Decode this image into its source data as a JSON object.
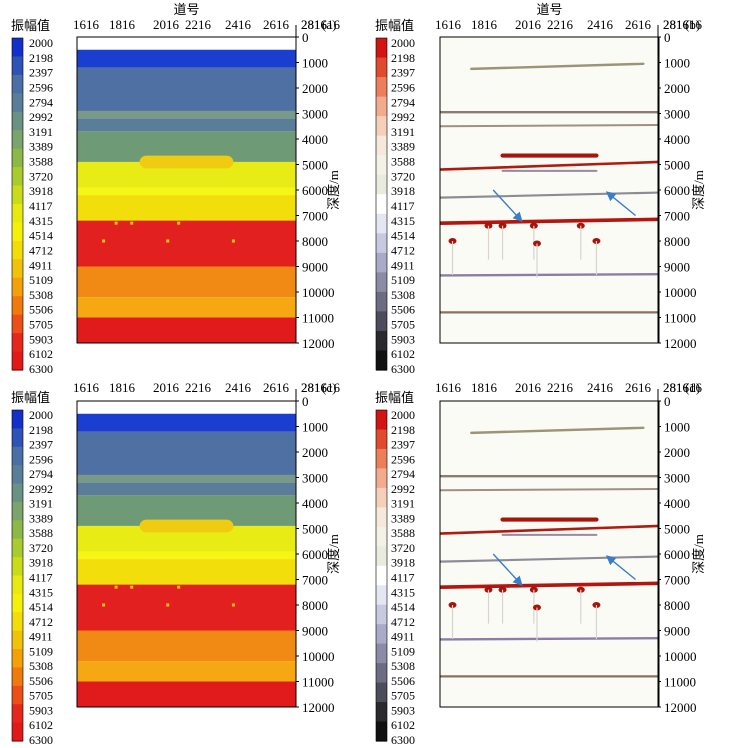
{
  "chart_data": [
    {
      "type": "heatmap",
      "panel": "(a)",
      "top_label": "道号",
      "colorbar_title": "振幅值",
      "ylabel": "深度/m",
      "x_ticks": [
        "1616",
        "1816",
        "2016",
        "2216",
        "2416",
        "2616",
        "2816",
        "3016"
      ],
      "y_ticks": [
        "0",
        "1000",
        "2000",
        "3000",
        "4000",
        "5000",
        "6000",
        "7000",
        "8000",
        "9000",
        "10000",
        "11000",
        "12000"
      ],
      "ylim": [
        0,
        12000
      ],
      "colorbar_ticks": [
        "2000",
        "2198",
        "2397",
        "2596",
        "2794",
        "2992",
        "3191",
        "3389",
        "3588",
        "3720",
        "3918",
        "4117",
        "4315",
        "4514",
        "4712",
        "4911",
        "5109",
        "5308",
        "5506",
        "5705",
        "5903",
        "6102",
        "6300"
      ],
      "colormap": [
        "#1330c8",
        "#2f52b6",
        "#4a6fa6",
        "#5a7e9a",
        "#6a9284",
        "#7aa46c",
        "#8cb848",
        "#a8cc30",
        "#c8dc1a",
        "#e6ea10",
        "#f4f00a",
        "#f2dc0a",
        "#f0c20a",
        "#f4a00a",
        "#f07a10",
        "#ec5018",
        "#e6281c",
        "#e11919"
      ]
    },
    {
      "type": "heatmap",
      "panel": "(b)",
      "top_label": "道号",
      "colorbar_title": "振幅值",
      "ylabel": "深度/m",
      "x_ticks": [
        "1616",
        "1816",
        "2016",
        "2216",
        "2416",
        "2616",
        "2816",
        "3016"
      ],
      "y_ticks": [
        "0",
        "1000",
        "2000",
        "3000",
        "4000",
        "5000",
        "6000",
        "7000",
        "8000",
        "9000",
        "10000",
        "11000",
        "12000"
      ],
      "ylim": [
        0,
        12000
      ],
      "colorbar_ticks": [
        "2000",
        "2198",
        "2397",
        "2596",
        "2794",
        "2992",
        "3191",
        "3389",
        "3588",
        "3720",
        "3918",
        "4117",
        "4315",
        "4514",
        "4712",
        "4911",
        "5109",
        "5308",
        "5506",
        "5705",
        "5903",
        "6102",
        "6300"
      ],
      "colormap": [
        "#d31414",
        "#e24a2e",
        "#ec7e5a",
        "#f2ab8c",
        "#f6cfb8",
        "#f7e8dc",
        "#f4f1e6",
        "#e9ecdc",
        "#ffffff",
        "#e4e6f2",
        "#c7c9e0",
        "#a8aac8",
        "#8b8ba8",
        "#6c6c84",
        "#4c4c5c",
        "#2a2a2e",
        "#111111"
      ]
    },
    {
      "type": "heatmap",
      "panel": "(c)",
      "colorbar_title": "振幅值",
      "ylabel": "深度/m",
      "x_ticks": [
        "1616",
        "1816",
        "2016",
        "2216",
        "2416",
        "2616",
        "2816",
        "3016"
      ],
      "y_ticks": [
        "0",
        "1000",
        "2000",
        "3000",
        "4000",
        "5000",
        "6000",
        "7000",
        "8000",
        "9000",
        "10000",
        "11000",
        "12000"
      ],
      "ylim": [
        0,
        12000
      ],
      "colorbar_ticks": [
        "2000",
        "2198",
        "2397",
        "2596",
        "2794",
        "2992",
        "3191",
        "3389",
        "3588",
        "3720",
        "3918",
        "4117",
        "4315",
        "4514",
        "4712",
        "4911",
        "5109",
        "5308",
        "5506",
        "5705",
        "5903",
        "6102",
        "6300"
      ],
      "colormap": [
        "#1330c8",
        "#2f52b6",
        "#4a6fa6",
        "#5a7e9a",
        "#6a9284",
        "#7aa46c",
        "#8cb848",
        "#a8cc30",
        "#c8dc1a",
        "#e6ea10",
        "#f4f00a",
        "#f2dc0a",
        "#f0c20a",
        "#f4a00a",
        "#f07a10",
        "#ec5018",
        "#e6281c",
        "#e11919"
      ]
    },
    {
      "type": "heatmap",
      "panel": "(d)",
      "colorbar_title": "振幅值",
      "ylabel": "深度/m",
      "x_ticks": [
        "1616",
        "1816",
        "2016",
        "2216",
        "2416",
        "2616",
        "2816",
        "3016"
      ],
      "y_ticks": [
        "0",
        "1000",
        "2000",
        "3000",
        "4000",
        "5000",
        "6000",
        "7000",
        "8000",
        "9000",
        "10000",
        "11000",
        "12000"
      ],
      "ylim": [
        0,
        12000
      ],
      "colorbar_ticks": [
        "2000",
        "2198",
        "2397",
        "2596",
        "2794",
        "2992",
        "3191",
        "3389",
        "3588",
        "3720",
        "3918",
        "4117",
        "4315",
        "4514",
        "4712",
        "4911",
        "5109",
        "5308",
        "5506",
        "5705",
        "5903",
        "6102",
        "6300"
      ],
      "colormap": [
        "#d31414",
        "#e24a2e",
        "#ec7e5a",
        "#f2ab8c",
        "#f6cfb8",
        "#f7e8dc",
        "#f4f1e6",
        "#e9ecdc",
        "#ffffff",
        "#e4e6f2",
        "#c7c9e0",
        "#a8aac8",
        "#8b8ba8",
        "#6c6c84",
        "#4c4c5c",
        "#2a2a2e",
        "#111111"
      ]
    }
  ],
  "velocity_model": {
    "background": "#ffffff",
    "layers": [
      {
        "from": 0,
        "to": 500,
        "color": "#ffffff"
      },
      {
        "from": 500,
        "to": 1200,
        "color": "#1a3fd0"
      },
      {
        "from": 1200,
        "to": 2900,
        "color": "#4f70a2"
      },
      {
        "from": 2900,
        "to": 3200,
        "color": "#799a88"
      },
      {
        "from": 3200,
        "to": 3700,
        "color": "#5a7e9a"
      },
      {
        "from": 3700,
        "to": 4900,
        "color": "#6f9a76"
      },
      {
        "from": 4900,
        "to": 5900,
        "color": "#e8ec14"
      },
      {
        "from": 5900,
        "to": 6200,
        "color": "#f6f614"
      },
      {
        "from": 6200,
        "to": 7200,
        "color": "#f2de0a"
      },
      {
        "from": 7200,
        "to": 9000,
        "color": "#e32020"
      },
      {
        "from": 9000,
        "to": 10200,
        "color": "#f08a14"
      },
      {
        "from": 10200,
        "to": 11000,
        "color": "#f6a812"
      },
      {
        "from": 11000,
        "to": 12000,
        "color": "#e11b1b"
      }
    ],
    "lens": {
      "x_from": 2016,
      "x_to": 2616,
      "depth_from": 4650,
      "depth_to": 5150,
      "color": "#f0cc10"
    }
  },
  "migration_image": {
    "reflectors": [
      {
        "x_from": 1816,
        "x_to": 2916,
        "depth_start": 1250,
        "depth_end": 1050,
        "color": "#9c9476",
        "width": 2.4
      },
      {
        "x_from": 1616,
        "x_to": 3016,
        "depth_start": 2950,
        "depth_end": 2950,
        "color": "#8a7c72",
        "width": 2.4
      },
      {
        "x_from": 1616,
        "x_to": 3016,
        "depth_start": 3500,
        "depth_end": 3450,
        "color": "#a09080",
        "width": 2
      },
      {
        "x_from": 1616,
        "x_to": 3016,
        "depth_start": 5200,
        "depth_end": 4900,
        "color": "#b01a10",
        "width": 2.6
      },
      {
        "x_from": 2016,
        "x_to": 2616,
        "depth_start": 4650,
        "depth_end": 4650,
        "color": "#a8140c",
        "width": 4.2
      },
      {
        "x_from": 2016,
        "x_to": 2616,
        "depth_start": 5250,
        "depth_end": 5250,
        "color": "#9a8aa0",
        "width": 2
      },
      {
        "x_from": 1616,
        "x_to": 3016,
        "depth_start": 6300,
        "depth_end": 6100,
        "color": "#8c8c96",
        "width": 2.2
      },
      {
        "x_from": 1616,
        "x_to": 3016,
        "depth_start": 7300,
        "depth_end": 7150,
        "color": "#b2160e",
        "width": 3.6
      },
      {
        "x_from": 1616,
        "x_to": 3016,
        "depth_start": 9350,
        "depth_end": 9300,
        "color": "#8a7ea6",
        "width": 2.4
      },
      {
        "x_from": 1616,
        "x_to": 3016,
        "depth_start": 10800,
        "depth_end": 10800,
        "color": "#8a7060",
        "width": 2.2
      }
    ],
    "scatterers": [
      {
        "x": 1926,
        "depth": 7400
      },
      {
        "x": 2016,
        "depth": 7400
      },
      {
        "x": 2216,
        "depth": 7400
      },
      {
        "x": 2516,
        "depth": 7400
      },
      {
        "x": 2236,
        "depth": 8100
      },
      {
        "x": 1696,
        "depth": 8000
      },
      {
        "x": 2616,
        "depth": 8000
      }
    ],
    "arrow_color": "#3a7ec6",
    "arrows": [
      {
        "x_from": 1956,
        "d_from": 6000,
        "x_to": 2136,
        "d_to": 7200
      },
      {
        "x_from": 2866,
        "d_from": 7000,
        "x_to": 2686,
        "d_to": 6100
      }
    ]
  }
}
